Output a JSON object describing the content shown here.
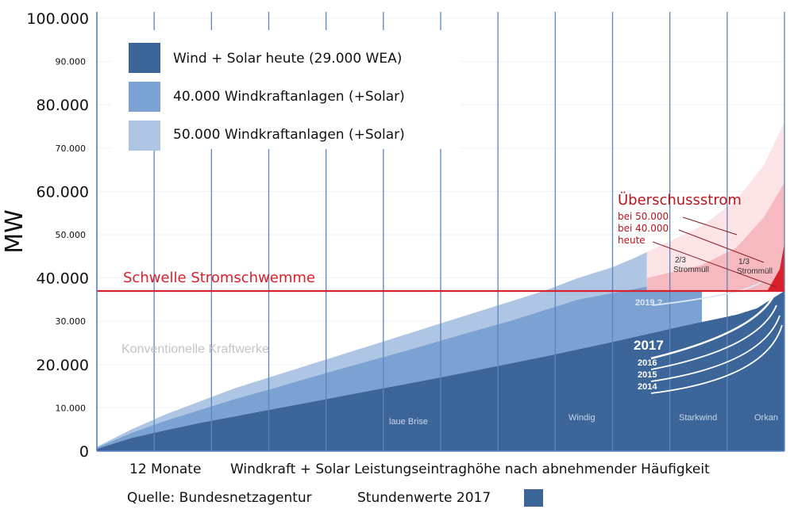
{
  "chart_data": {
    "type": "area",
    "ylabel": "MW",
    "xlabel": "Windkraft + Solar Leistungseintraghöhe nach abnehmender Häufigkeit",
    "x_start_label": "12 Monate",
    "ylim": [
      0,
      100000
    ],
    "y_ticks_major": [
      "100.000",
      "80.000",
      "60.000",
      "40.000",
      "20.000",
      "0"
    ],
    "y_ticks_minor": [
      "90.000",
      "70.000",
      "50.000",
      "30.000",
      "10.000"
    ],
    "y_tick_major_values": [
      100000,
      80000,
      60000,
      40000,
      20000,
      0
    ],
    "y_tick_minor_values": [
      90000,
      70000,
      50000,
      30000,
      10000
    ],
    "x_range": [
      0,
      100
    ],
    "series": [
      {
        "name": "50.000 Windkraftanlagen (+Solar)",
        "color": "#aec6e4",
        "x": [
          0,
          5,
          10,
          15,
          20,
          25,
          30,
          35,
          40,
          45,
          50,
          55,
          60,
          65,
          70,
          72,
          75,
          78,
          80
        ],
        "values": [
          1000,
          5000,
          8500,
          11500,
          14500,
          17000,
          19500,
          22000,
          24500,
          27000,
          29500,
          32000,
          34500,
          37000,
          40000,
          41000,
          42500,
          44500,
          46000
        ]
      },
      {
        "name": "40.000 Windkraftanlagen (+Solar)",
        "color": "#7ba2d2",
        "x": [
          0,
          5,
          10,
          15,
          20,
          25,
          30,
          35,
          40,
          45,
          50,
          55,
          60,
          65,
          70,
          75,
          80,
          85,
          88
        ],
        "values": [
          800,
          4200,
          7000,
          9500,
          12000,
          14200,
          16500,
          18800,
          21000,
          23200,
          25500,
          27800,
          30000,
          32500,
          35000,
          36500,
          38000,
          39000,
          40000
        ]
      },
      {
        "name": "Wind + Solar heute (29.000 WEA)",
        "color": "#3c6599",
        "x": [
          0,
          5,
          10,
          15,
          20,
          25,
          30,
          35,
          40,
          45,
          50,
          55,
          60,
          65,
          70,
          75,
          80,
          85,
          90,
          93,
          96,
          98,
          100
        ],
        "values": [
          500,
          3000,
          4800,
          6500,
          8000,
          9500,
          11000,
          12500,
          14000,
          15500,
          17000,
          18600,
          20200,
          21800,
          23500,
          25200,
          27000,
          28800,
          30500,
          31500,
          33000,
          35000,
          37000
        ]
      }
    ],
    "surplus_peak": {
      "x": [
        80,
        88,
        93,
        97,
        100
      ],
      "values_50000": [
        46000,
        52000,
        58000,
        66000,
        76000
      ],
      "values_40000": [
        40000,
        43000,
        47000,
        54000,
        62000
      ]
    },
    "threshold": {
      "value": 37000,
      "label": "Schwelle Stromschwemme",
      "color": "#d9202b"
    },
    "annotations": {
      "konventionelle": "Konventionelle Kraftwerke",
      "surplus_title": "Überschussstrom",
      "surplus_lines": [
        "bei 50.000",
        "bei 40.000",
        "heute"
      ],
      "two_thirds": "2/3",
      "one_third": "1/3",
      "stromm_1": "Strommüll",
      "stromm_2": "Strommüll",
      "year_2019": "2019 ?",
      "year_2017": "2017",
      "year_2016": "2016",
      "year_2015": "2015",
      "year_2014": "2014",
      "regimes": [
        "laue Brise",
        "Windig",
        "Starkwind",
        "Orkan"
      ]
    },
    "legend": {
      "placement": "top-left",
      "items": [
        {
          "label": "Wind + Solar heute (29.000 WEA)",
          "color": "#3c6599"
        },
        {
          "label": "40.000 Windkraftanlagen (+Solar)",
          "color": "#7ba2d2"
        },
        {
          "label": "50.000 Windkraftanlagen (+Solar)",
          "color": "#aec6e4"
        }
      ]
    },
    "grid": true
  },
  "footer": {
    "source": "Quelle: Bundesnetzagentur",
    "hourly": "Stundenwerte 2017",
    "swatch_color": "#3c6599"
  }
}
